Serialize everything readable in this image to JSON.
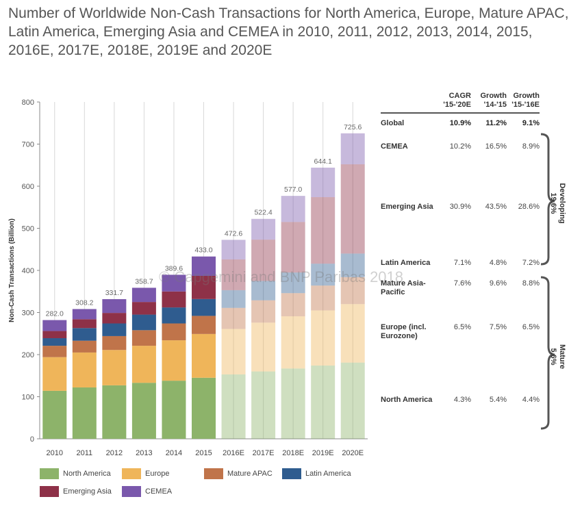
{
  "title": "Number of Worldwide Non-Cash Transactions for North America, Europe, Mature APAC, Latin America, Emerging Asia and CEMEA in 2010, 2011, 2012, 2013, 2014, 2015, 2016E, 2017E, 2018E, 2019E and 2020E",
  "watermark": "© Capgemini and BNP Paribas 2018",
  "chart_data": {
    "type": "bar",
    "stacked": true,
    "ylabel": "Non-Cash Transactions (Billion)",
    "ylim": [
      0,
      800
    ],
    "yticks": [
      0,
      100,
      200,
      300,
      400,
      500,
      600,
      700,
      800
    ],
    "grid": "vertical",
    "categories": [
      "2010",
      "2011",
      "2012",
      "2013",
      "2014",
      "2015",
      "2016E",
      "2017E",
      "2018E",
      "2019E",
      "2020E"
    ],
    "estimated_from_index": 6,
    "totals": [
      "282.0",
      "308.2",
      "331.7",
      "358.7",
      "389.6",
      "433.0",
      "472.6",
      "522.4",
      "577.0",
      "644.1",
      "725.6"
    ],
    "series": [
      {
        "name": "North America",
        "color": "#8db36a",
        "values": [
          114,
          122,
          127,
          133,
          138,
          145,
          153,
          160,
          167,
          174,
          181
        ]
      },
      {
        "name": "Europe",
        "color": "#efb55a",
        "values": [
          80,
          83,
          84,
          88,
          96,
          104,
          108,
          116,
          124,
          131,
          139
        ]
      },
      {
        "name": "Mature APAC",
        "color": "#c0744a",
        "values": [
          27,
          28,
          33,
          37,
          40,
          43,
          50,
          53,
          55,
          59,
          64
        ]
      },
      {
        "name": "Latin America",
        "color": "#2f5c8f",
        "values": [
          18,
          30,
          30,
          37,
          38,
          40,
          42,
          46,
          49,
          52,
          56
        ]
      },
      {
        "name": "Emerging Asia",
        "color": "#8e3148",
        "values": [
          17,
          21,
          25,
          30,
          38,
          55,
          73,
          98,
          120,
          158,
          212
        ]
      },
      {
        "name": "CEMEA",
        "color": "#7a58ac",
        "values": [
          26,
          24.2,
          32.7,
          33.7,
          39.6,
          46,
          46.6,
          49.4,
          62,
          70.1,
          73.6
        ]
      }
    ],
    "legend_position": "bottom-left"
  },
  "table": {
    "headers": [
      {
        "top": "CAGR",
        "bottom": "'15-'20E"
      },
      {
        "top": "Growth",
        "bottom": "'14-'15"
      },
      {
        "top": "Growth",
        "bottom": "'15-'16E"
      }
    ],
    "rows": [
      {
        "label": "Global",
        "values": [
          "10.9%",
          "11.2%",
          "9.1%"
        ],
        "bold": true
      },
      {
        "label": "CEMEA",
        "values": [
          "10.2%",
          "16.5%",
          "8.9%"
        ]
      },
      {
        "label": "Emerging Asia",
        "values": [
          "30.9%",
          "43.5%",
          "28.6%"
        ]
      },
      {
        "label": "Latin America",
        "values": [
          "7.1%",
          "4.8%",
          "7.2%"
        ]
      },
      {
        "label": "Mature Asia-Pacific",
        "values": [
          "7.6%",
          "9.6%",
          "8.8%"
        ]
      },
      {
        "label": "Europe (incl. Eurozone)",
        "values": [
          "6.5%",
          "7.5%",
          "6.5%"
        ]
      },
      {
        "label": "North America",
        "values": [
          "4.3%",
          "5.4%",
          "4.4%"
        ]
      }
    ],
    "groups": [
      {
        "name": "Developing",
        "value": "19.6%"
      },
      {
        "name": "Mature",
        "value": "5.6%"
      }
    ]
  }
}
